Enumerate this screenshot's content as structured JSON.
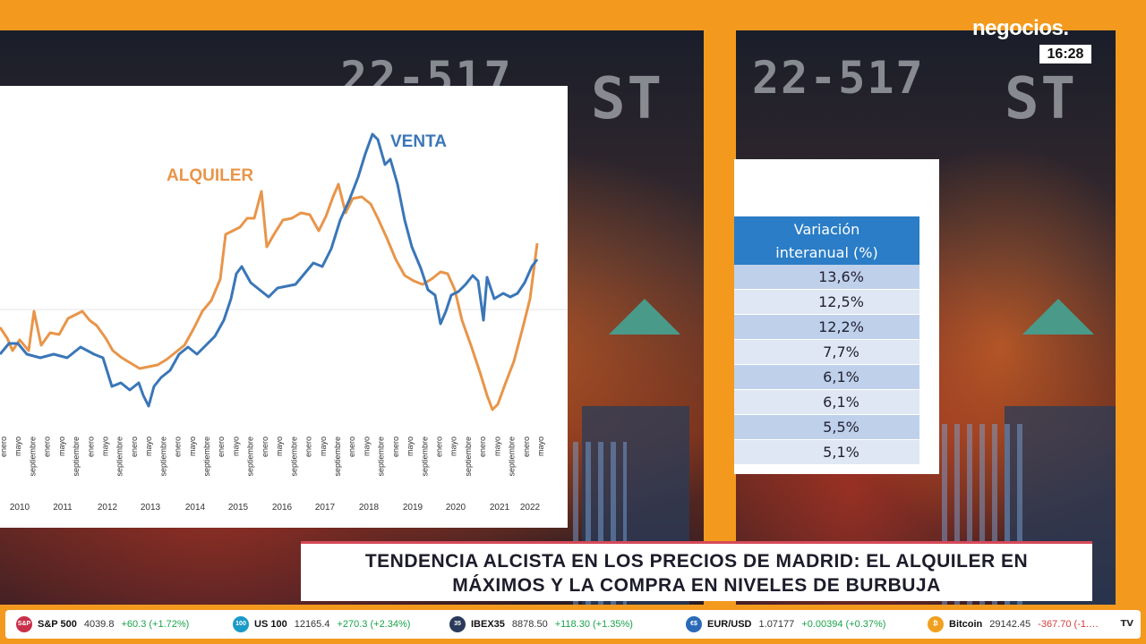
{
  "brand": {
    "logo": "negocios.",
    "time": "16:28"
  },
  "chart_data": {
    "type": "line",
    "series": [
      {
        "name": "VENTA",
        "color": "#3a76b8"
      },
      {
        "name": "ALQUILER",
        "color": "#e8954a"
      }
    ],
    "x_tick_labels": [
      "enero",
      "mayo",
      "septiembre",
      "enero",
      "mayo",
      "septiembre",
      "enero",
      "mayo",
      "septiembre",
      "enero",
      "mayo",
      "septiembre",
      "enero",
      "mayo",
      "septiembre",
      "enero",
      "mayo",
      "septiembre",
      "enero",
      "mayo",
      "septiembre",
      "enero",
      "mayo",
      "septiembre",
      "enero",
      "mayo",
      "septiembre",
      "enero",
      "mayo",
      "septiembre",
      "enero",
      "mayo",
      "septiembre",
      "enero",
      "mayo",
      "septiembre",
      "enero",
      "mayo"
    ],
    "years": [
      "2010",
      "2011",
      "2012",
      "2013",
      "2014",
      "2015",
      "2016",
      "2017",
      "2018",
      "2019",
      "2020",
      "2021",
      "2022"
    ]
  },
  "variation_table": {
    "header_line1": "Variación",
    "header_line2": "interanual (%)",
    "rows": [
      "13,6%",
      "12,5%",
      "12,2%",
      "7,7%",
      "6,1%",
      "6,1%",
      "5,5%",
      "5,1%"
    ]
  },
  "headline": {
    "line1": "TENDENCIA ALCISTA EN LOS PRECIOS DE MADRID: EL ALQUILER EN",
    "line2": "MÁXIMOS Y LA COMPRA EN NIVELES DE BURBUJA"
  },
  "ticker": [
    {
      "icon": "S&P",
      "icon_color": "#c8304a",
      "name": "S&P 500",
      "value": "4039.8",
      "change": "+60.3 (+1.72%)",
      "dir": "up"
    },
    {
      "icon": "100",
      "icon_color": "#1a9ac8",
      "name": "US 100",
      "value": "12165.4",
      "change": "+270.3 (+2.34%)",
      "dir": "up"
    },
    {
      "icon": "35",
      "icon_color": "#2a3a5a",
      "name": "IBEX35",
      "value": "8878.50",
      "change": "+118.30 (+1.35%)",
      "dir": "up"
    },
    {
      "icon": "€$",
      "icon_color": "#2a6ab8",
      "name": "EUR/USD",
      "value": "1.07177",
      "change": "+0.00394 (+0.37%)",
      "dir": "up"
    },
    {
      "icon": "₿",
      "icon_color": "#f0a020",
      "name": "Bitcoin",
      "value": "29142.45",
      "change": "-367.70 (-1.…",
      "dir": "dn"
    }
  ],
  "ticker_end": "TV"
}
